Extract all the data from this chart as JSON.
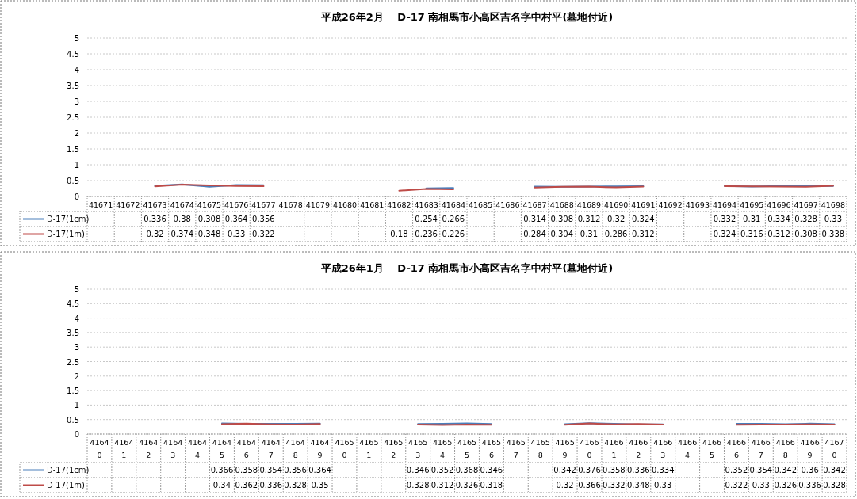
{
  "chart_data": [
    {
      "type": "line",
      "title": "平成26年2月　 D-17 南相馬市小高区吉名字中村平(墓地付近)",
      "categories": [
        "41671",
        "41672",
        "41673",
        "41674",
        "41675",
        "41676",
        "41677",
        "41678",
        "41679",
        "41680",
        "41681",
        "41682",
        "41683",
        "41684",
        "41685",
        "41686",
        "41687",
        "41688",
        "41689",
        "41690",
        "41691",
        "41692",
        "41693",
        "41694",
        "41695",
        "41696",
        "41697",
        "41698"
      ],
      "ylim": [
        0,
        5
      ],
      "yticks": [
        0,
        0.5,
        1,
        1.5,
        2,
        2.5,
        3,
        3.5,
        4,
        4.5,
        5
      ],
      "grid": "y",
      "legend": "left",
      "data_labels": true,
      "series": [
        {
          "name": "D-17(1cm)",
          "color": "#4a7ebb",
          "values": [
            null,
            null,
            0.336,
            0.38,
            0.308,
            0.364,
            0.356,
            null,
            null,
            null,
            null,
            null,
            0.254,
            0.266,
            null,
            null,
            0.314,
            0.308,
            0.312,
            0.32,
            0.324,
            null,
            null,
            0.332,
            0.31,
            0.334,
            0.328,
            0.33
          ]
        },
        {
          "name": "D-17(1m)",
          "color": "#be4b48",
          "values": [
            null,
            null,
            0.32,
            0.374,
            0.348,
            0.33,
            0.322,
            null,
            null,
            null,
            null,
            0.18,
            0.236,
            0.226,
            null,
            null,
            0.284,
            0.304,
            0.31,
            0.286,
            0.312,
            null,
            null,
            0.324,
            0.316,
            0.312,
            0.308,
            0.338
          ]
        }
      ]
    },
    {
      "type": "line",
      "title": "平成26年1月　 D-17 南相馬市小高区吉名字中村平(墓地付近)",
      "categories": [
        "41640",
        "41641",
        "41642",
        "41643",
        "41644",
        "41645",
        "41646",
        "41647",
        "41648",
        "41649",
        "41650",
        "41651",
        "41652",
        "41653",
        "41654",
        "41655",
        "41656",
        "41657",
        "41658",
        "41659",
        "41660",
        "41661",
        "41662",
        "41663",
        "41664",
        "41665",
        "41666",
        "41667",
        "41668",
        "41669",
        "41670"
      ],
      "ylim": [
        0,
        5
      ],
      "yticks": [
        0,
        0.5,
        1,
        1.5,
        2,
        2.5,
        3,
        3.5,
        4,
        4.5,
        5
      ],
      "grid": "y",
      "legend": "left",
      "data_labels": true,
      "series": [
        {
          "name": "D-17(1cm)",
          "color": "#4a7ebb",
          "values": [
            null,
            null,
            null,
            null,
            null,
            0.366,
            0.358,
            0.354,
            0.356,
            0.364,
            null,
            null,
            null,
            0.346,
            0.352,
            0.368,
            0.346,
            null,
            null,
            0.342,
            0.376,
            0.358,
            0.336,
            0.334,
            null,
            null,
            0.352,
            0.354,
            0.342,
            0.36,
            0.342
          ]
        },
        {
          "name": "D-17(1m)",
          "color": "#be4b48",
          "values": [
            null,
            null,
            null,
            null,
            null,
            0.34,
            0.362,
            0.336,
            0.328,
            0.35,
            null,
            null,
            null,
            0.328,
            0.312,
            0.326,
            0.318,
            null,
            null,
            0.32,
            0.366,
            0.332,
            0.348,
            0.33,
            null,
            null,
            0.322,
            0.33,
            0.326,
            0.336,
            0.328
          ]
        }
      ]
    }
  ]
}
